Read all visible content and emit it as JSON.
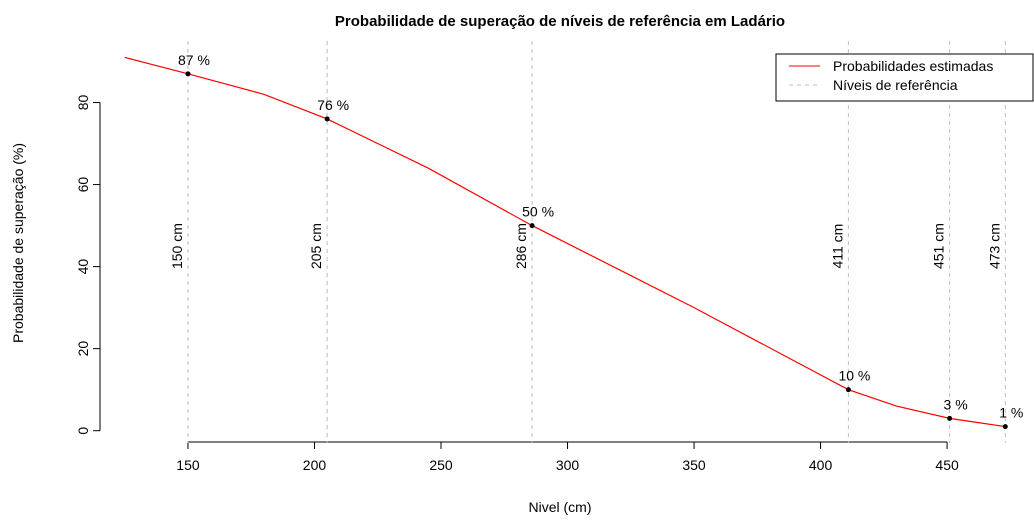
{
  "chart_data": {
    "type": "line",
    "title": "Probabilidade de superação de níveis de referência em Ladário",
    "x_label": "Nivel (cm)",
    "y_label": "Probabilidade de superação (%)",
    "xlim": [
      115,
      480
    ],
    "ylim": [
      -3,
      95
    ],
    "xticks": [
      150,
      200,
      250,
      300,
      350,
      400,
      450
    ],
    "yticks": [
      0,
      20,
      40,
      60,
      80
    ],
    "legend": "top-right",
    "series": [
      {
        "name": "Probabilidades estimadas",
        "color": "#ff0000",
        "x": [
          125,
          150,
          180,
          205,
          245,
          286,
          350,
          411,
          430,
          451,
          462,
          473
        ],
        "values": [
          91,
          87,
          82,
          76,
          64,
          50,
          30,
          10,
          6,
          3,
          2,
          1
        ]
      }
    ],
    "points": {
      "x": [
        150,
        205,
        286,
        411,
        451,
        473
      ],
      "values": [
        87,
        76,
        50,
        10,
        3,
        1
      ],
      "value_labels": [
        "87 %",
        "76 %",
        "50 %",
        "10 %",
        "3 %",
        "1 %"
      ]
    },
    "reference_lines": {
      "name": "Níveis de referência",
      "color": "#bebebe",
      "values": [
        150,
        205,
        286,
        411,
        451,
        473
      ],
      "labels": [
        "150 cm",
        "205 cm",
        "286 cm",
        "411 cm",
        "451 cm",
        "473 cm"
      ]
    }
  }
}
